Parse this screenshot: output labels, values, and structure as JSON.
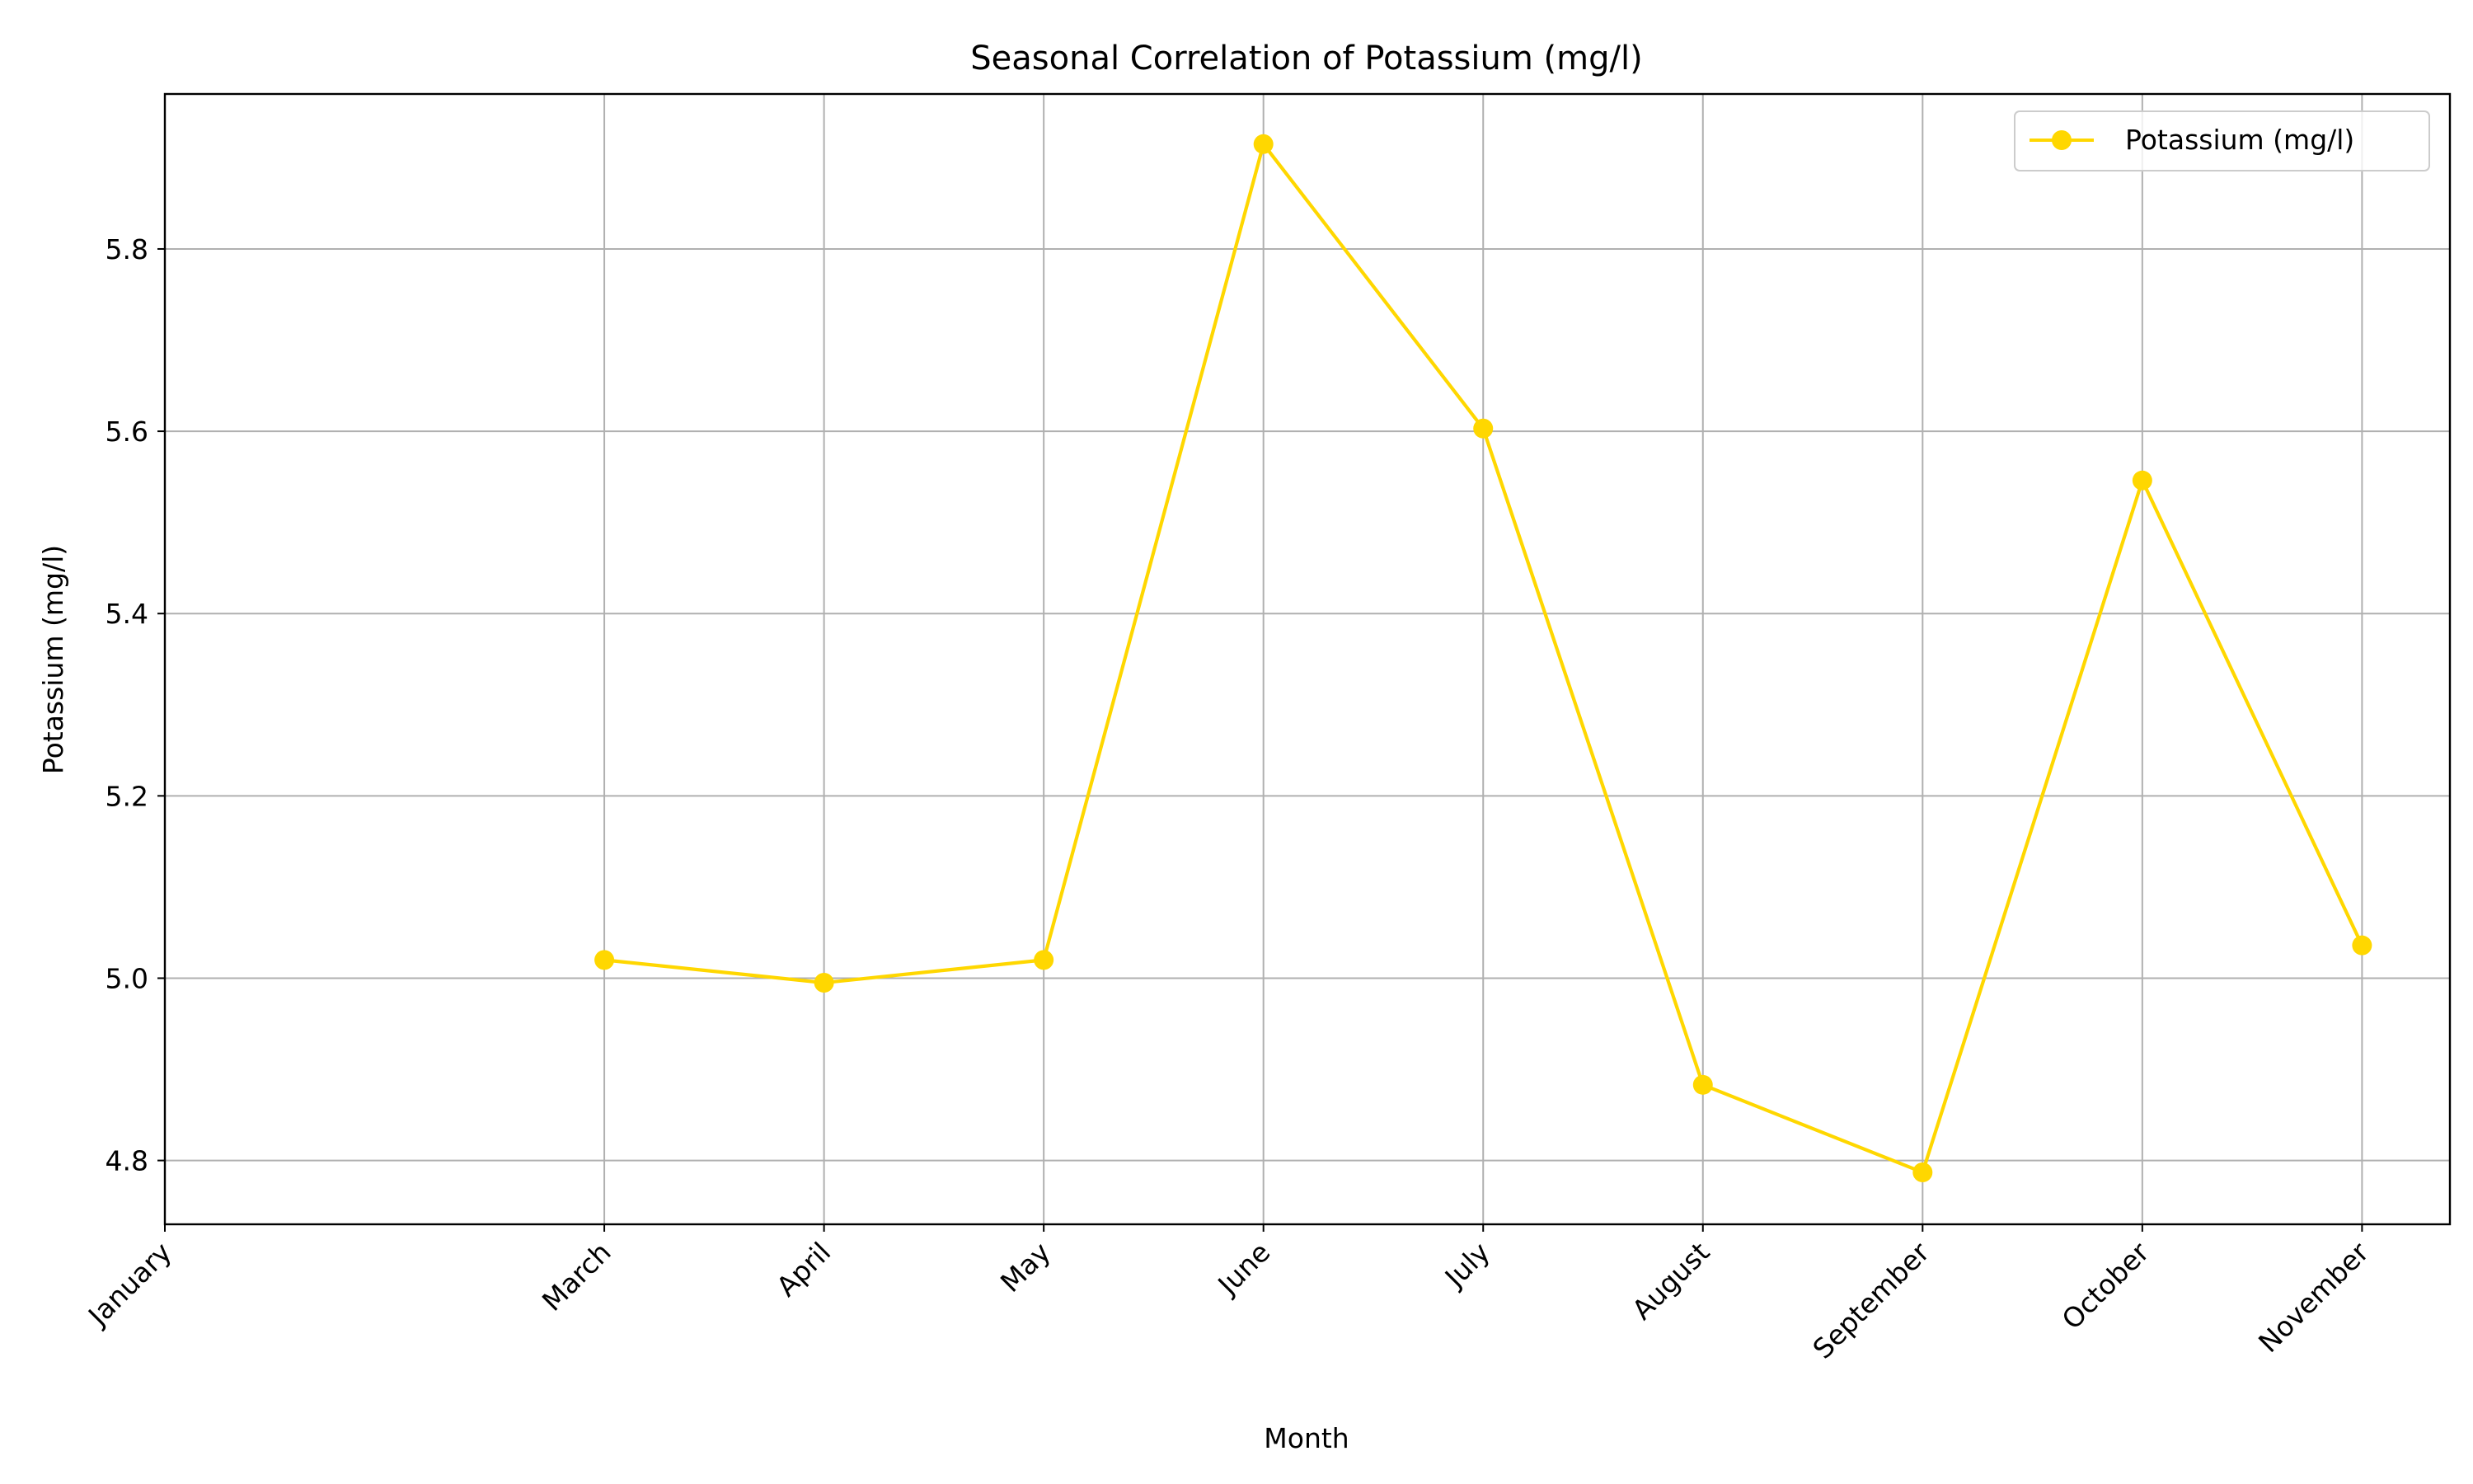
{
  "chart_data": {
    "type": "line",
    "title": "Seasonal Correlation of Potassium (mg/l)",
    "xlabel": "Month",
    "ylabel": "Potassium (mg/l)",
    "categories": [
      "January",
      "March",
      "April",
      "May",
      "June",
      "July",
      "August",
      "September",
      "October",
      "November"
    ],
    "x_positions": [
      1,
      3,
      4,
      5,
      6,
      7,
      8,
      9,
      10,
      11
    ],
    "series": [
      {
        "name": "Potassium (mg/l)",
        "color": "#FFD700",
        "x": [
          "March",
          "April",
          "May",
          "June",
          "July",
          "August",
          "September",
          "October",
          "November"
        ],
        "x_positions": [
          3,
          4,
          5,
          6,
          7,
          8,
          9,
          10,
          11
        ],
        "values": [
          5.02,
          4.995,
          5.02,
          5.915,
          5.603,
          4.883,
          4.787,
          5.546,
          5.036
        ]
      }
    ],
    "xlim": [
      1,
      11.4
    ],
    "ylim": [
      4.73,
      5.97
    ],
    "yticks": [
      4.8,
      5.0,
      5.2,
      5.4,
      5.6,
      5.8
    ],
    "ytick_labels": [
      "4.8",
      "5.0",
      "5.2",
      "5.4",
      "5.6",
      "5.8"
    ],
    "grid": true,
    "legend_position": "top-right"
  }
}
